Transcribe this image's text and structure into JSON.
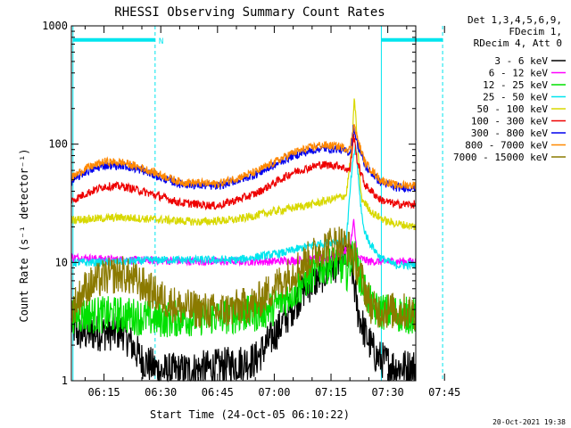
{
  "chart_data": {
    "type": "line",
    "title": "RHESSI Observing Summary Count Rates",
    "xlabel": "Start Time (24-Oct-05 06:10:22)",
    "ylabel": "Count Rate (s⁻¹ detector⁻¹)",
    "y_scale": "log",
    "ylim": [
      1,
      1000
    ],
    "xlim_minutes": [
      6.37,
      97.4
    ],
    "x_ticks": [
      "06:15",
      "06:30",
      "06:45",
      "07:00",
      "07:15",
      "07:30",
      "07:45"
    ],
    "x_tick_minutes": [
      15,
      30,
      45,
      60,
      75,
      90,
      105
    ],
    "y_ticks": [
      "1",
      "10",
      "100",
      "1000"
    ],
    "y_tick_values": [
      1,
      10,
      100,
      1000
    ],
    "grid": false,
    "legend_header": [
      "Det 1,3,4,5,6,9,",
      "FDecim 1,",
      "RDecim 4, Att 0"
    ],
    "legend_position": "top-right",
    "footer_date": "20-Oct-2021 19:38",
    "flags": {
      "night_boundaries_minutes": [
        6.8,
        28.5,
        88.3,
        104.5
      ],
      "saa_bars": [
        [
          6.8,
          28.5
        ],
        [
          88.3,
          104.5
        ]
      ],
      "saa_bar_level": 760,
      "label": "N",
      "color": "#00e5ee"
    },
    "series": [
      {
        "name": "3 - 6 keV",
        "color": "#000000",
        "knots": [
          [
            6.4,
            3.0
          ],
          [
            8,
            2.5
          ],
          [
            20,
            2.6
          ],
          [
            25,
            1.5
          ],
          [
            30,
            1.2
          ],
          [
            35,
            1.2
          ],
          [
            45,
            1.3
          ],
          [
            55,
            1.5
          ],
          [
            62,
            3
          ],
          [
            68,
            6
          ],
          [
            75,
            9
          ],
          [
            80,
            12
          ],
          [
            82,
            4
          ],
          [
            84,
            2.5
          ],
          [
            87,
            1.6
          ],
          [
            92,
            1.3
          ],
          [
            97,
            1.3
          ]
        ]
      },
      {
        "name": "6 - 12 keV",
        "color": "#ff00ff",
        "knots": [
          [
            6.4,
            11
          ],
          [
            20,
            10.5
          ],
          [
            40,
            10.2
          ],
          [
            60,
            10.2
          ],
          [
            70,
            10.6
          ],
          [
            75,
            11
          ],
          [
            80,
            13
          ],
          [
            81,
            22
          ],
          [
            82,
            11
          ],
          [
            85,
            10.2
          ],
          [
            97,
            10.2
          ]
        ]
      },
      {
        "name": "12 - 25 keV",
        "color": "#00e000",
        "knots": [
          [
            6.4,
            3.6
          ],
          [
            10,
            3.6
          ],
          [
            20,
            3.6
          ],
          [
            30,
            3.3
          ],
          [
            45,
            3.5
          ],
          [
            55,
            3.7
          ],
          [
            60,
            4.2
          ],
          [
            66,
            6
          ],
          [
            72,
            9
          ],
          [
            77,
            10
          ],
          [
            79,
            8
          ],
          [
            81,
            12
          ],
          [
            83,
            7
          ],
          [
            86,
            4
          ],
          [
            97,
            3.5
          ]
        ]
      },
      {
        "name": "25 - 50 keV",
        "color": "#00e5ee",
        "knots": [
          [
            6.4,
            10
          ],
          [
            15,
            10
          ],
          [
            30,
            10.5
          ],
          [
            50,
            10.5
          ],
          [
            62,
            12
          ],
          [
            70,
            14
          ],
          [
            76,
            15
          ],
          [
            79,
            15
          ],
          [
            80.5,
            60
          ],
          [
            81.5,
            100
          ],
          [
            82.5,
            40
          ],
          [
            83.5,
            20
          ],
          [
            85,
            15
          ],
          [
            88,
            11
          ],
          [
            92,
            9.5
          ],
          [
            97,
            9.5
          ]
        ]
      },
      {
        "name": "50 - 100 keV",
        "color": "#d8d800",
        "knots": [
          [
            6.4,
            23
          ],
          [
            20,
            24
          ],
          [
            30,
            23
          ],
          [
            40,
            22
          ],
          [
            50,
            23
          ],
          [
            60,
            27
          ],
          [
            70,
            31
          ],
          [
            75,
            34
          ],
          [
            79,
            37
          ],
          [
            80.5,
            90
          ],
          [
            81.2,
            250
          ],
          [
            82,
            100
          ],
          [
            83,
            35
          ],
          [
            86,
            26
          ],
          [
            90,
            22
          ],
          [
            97,
            20
          ]
        ]
      },
      {
        "name": "100 - 300 keV",
        "color": "#ee0000",
        "knots": [
          [
            6.4,
            33
          ],
          [
            10,
            38
          ],
          [
            15,
            44
          ],
          [
            20,
            44
          ],
          [
            25,
            40
          ],
          [
            30,
            36
          ],
          [
            35,
            32
          ],
          [
            45,
            30
          ],
          [
            55,
            38
          ],
          [
            65,
            58
          ],
          [
            72,
            67
          ],
          [
            77,
            66
          ],
          [
            80,
            60
          ],
          [
            81,
            120
          ],
          [
            82,
            70
          ],
          [
            84,
            45
          ],
          [
            88,
            34
          ],
          [
            92,
            31
          ],
          [
            97,
            31
          ]
        ]
      },
      {
        "name": "300 - 800 keV",
        "color": "#0000ee",
        "knots": [
          [
            6.4,
            48
          ],
          [
            10,
            58
          ],
          [
            15,
            66
          ],
          [
            20,
            66
          ],
          [
            25,
            60
          ],
          [
            30,
            52
          ],
          [
            35,
            46
          ],
          [
            45,
            44
          ],
          [
            55,
            55
          ],
          [
            65,
            80
          ],
          [
            72,
            92
          ],
          [
            77,
            91
          ],
          [
            80,
            85
          ],
          [
            81,
            140
          ],
          [
            82,
            100
          ],
          [
            84,
            65
          ],
          [
            88,
            48
          ],
          [
            92,
            43
          ],
          [
            97,
            43
          ]
        ]
      },
      {
        "name": "800 - 7000 keV",
        "color": "#ff8800",
        "knots": [
          [
            6.4,
            52
          ],
          [
            10,
            62
          ],
          [
            15,
            71
          ],
          [
            20,
            70
          ],
          [
            25,
            63
          ],
          [
            30,
            55
          ],
          [
            35,
            48
          ],
          [
            45,
            46
          ],
          [
            55,
            58
          ],
          [
            65,
            85
          ],
          [
            72,
            98
          ],
          [
            77,
            96
          ],
          [
            80,
            90
          ],
          [
            81,
            150
          ],
          [
            82,
            110
          ],
          [
            84,
            70
          ],
          [
            88,
            50
          ],
          [
            92,
            45
          ],
          [
            97,
            45
          ]
        ]
      },
      {
        "name": "7000 - 15000 keV",
        "color": "#8b7a00",
        "knots": [
          [
            6.4,
            4
          ],
          [
            10,
            6
          ],
          [
            15,
            7.5
          ],
          [
            20,
            8
          ],
          [
            25,
            6.5
          ],
          [
            30,
            5
          ],
          [
            35,
            4.2
          ],
          [
            45,
            3.8
          ],
          [
            55,
            4.5
          ],
          [
            62,
            7
          ],
          [
            68,
            10
          ],
          [
            73,
            13.5
          ],
          [
            77,
            15
          ],
          [
            80,
            13
          ],
          [
            82,
            9
          ],
          [
            84,
            6
          ],
          [
            86,
            4
          ],
          [
            97,
            3.8
          ]
        ]
      }
    ]
  }
}
